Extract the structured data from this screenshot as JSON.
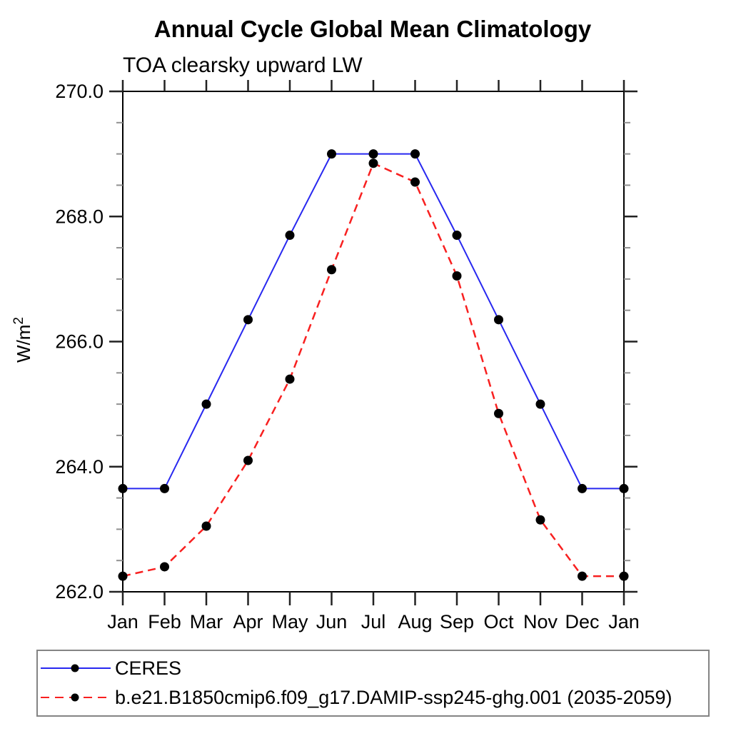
{
  "title": "Annual Cycle Global Mean Climatology",
  "subtitle": "TOA clearsky upward LW",
  "ylabel": {
    "base": "W/m",
    "exponent": "2"
  },
  "colors": {
    "ceres_line": "#2828f0",
    "model_line": "#f82020",
    "marker": "#000000",
    "frame": "#000000",
    "major_tick": "#222222",
    "minor_tick": "#909090",
    "legend_border": "#848484",
    "text": "#000000"
  },
  "legend": {
    "entries": [
      {
        "label": "CERES",
        "style": "solid"
      },
      {
        "label": "b.e21.B1850cmip6.f09_g17.DAMIP-ssp245-ghg.001 (2035-2059)",
        "style": "dashed"
      }
    ]
  },
  "chart_data": {
    "type": "line",
    "title": "Annual Cycle Global Mean Climatology",
    "subtitle": "TOA clearsky upward LW",
    "ylabel": "W/m^2",
    "x_tick_labels": [
      "Jan",
      "Feb",
      "Mar",
      "Apr",
      "May",
      "Jun",
      "Jul",
      "Aug",
      "Sep",
      "Oct",
      "Nov",
      "Dec",
      "Jan"
    ],
    "ylim": [
      262.0,
      270.0
    ],
    "y_major_ticks": [
      262.0,
      264.0,
      266.0,
      268.0,
      270.0
    ],
    "y_minor_step": 0.5,
    "grid": false,
    "legend_position": "bottom-left-box",
    "series": [
      {
        "name": "CERES",
        "color": "#2828f0",
        "style": "solid",
        "marker": "filled-circle",
        "values": [
          263.65,
          263.65,
          265.0,
          266.35,
          267.7,
          269.0,
          269.0,
          269.0,
          267.7,
          266.35,
          265.0,
          263.65,
          263.65
        ]
      },
      {
        "name": "b.e21.B1850cmip6.f09_g17.DAMIP-ssp245-ghg.001 (2035-2059)",
        "color": "#f82020",
        "style": "dashed",
        "marker": "filled-circle",
        "values": [
          262.25,
          262.4,
          263.05,
          264.1,
          265.4,
          267.15,
          268.85,
          268.55,
          267.05,
          264.85,
          263.15,
          262.25,
          262.25
        ]
      }
    ]
  }
}
